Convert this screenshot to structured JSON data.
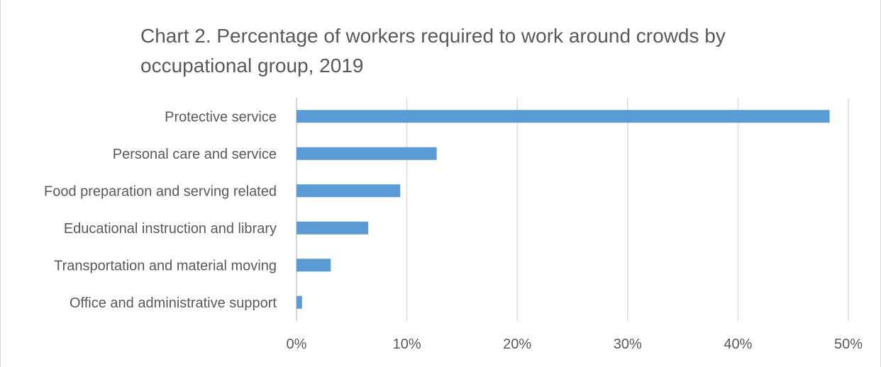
{
  "chart_data": {
    "type": "bar",
    "orientation": "horizontal",
    "title": "Chart 2. Percentage of workers required to work around crowds by occupational group, 2019",
    "categories": [
      "Protective service",
      "Personal care and service",
      "Food preparation and serving related",
      "Educational instruction and library",
      "Transportation and material moving",
      "Office and administrative support"
    ],
    "values": [
      48.3,
      12.7,
      9.4,
      6.5,
      3.1,
      0.5
    ],
    "xlabel": "",
    "ylabel": "",
    "xlim": [
      0,
      50
    ],
    "x_ticks": [
      "0%",
      "10%",
      "20%",
      "30%",
      "40%",
      "50%"
    ],
    "grid": "vertical",
    "legend": "none",
    "bar_color": "#5b9bd5",
    "grid_color": "#d9d9d9",
    "text_color": "#595959"
  }
}
